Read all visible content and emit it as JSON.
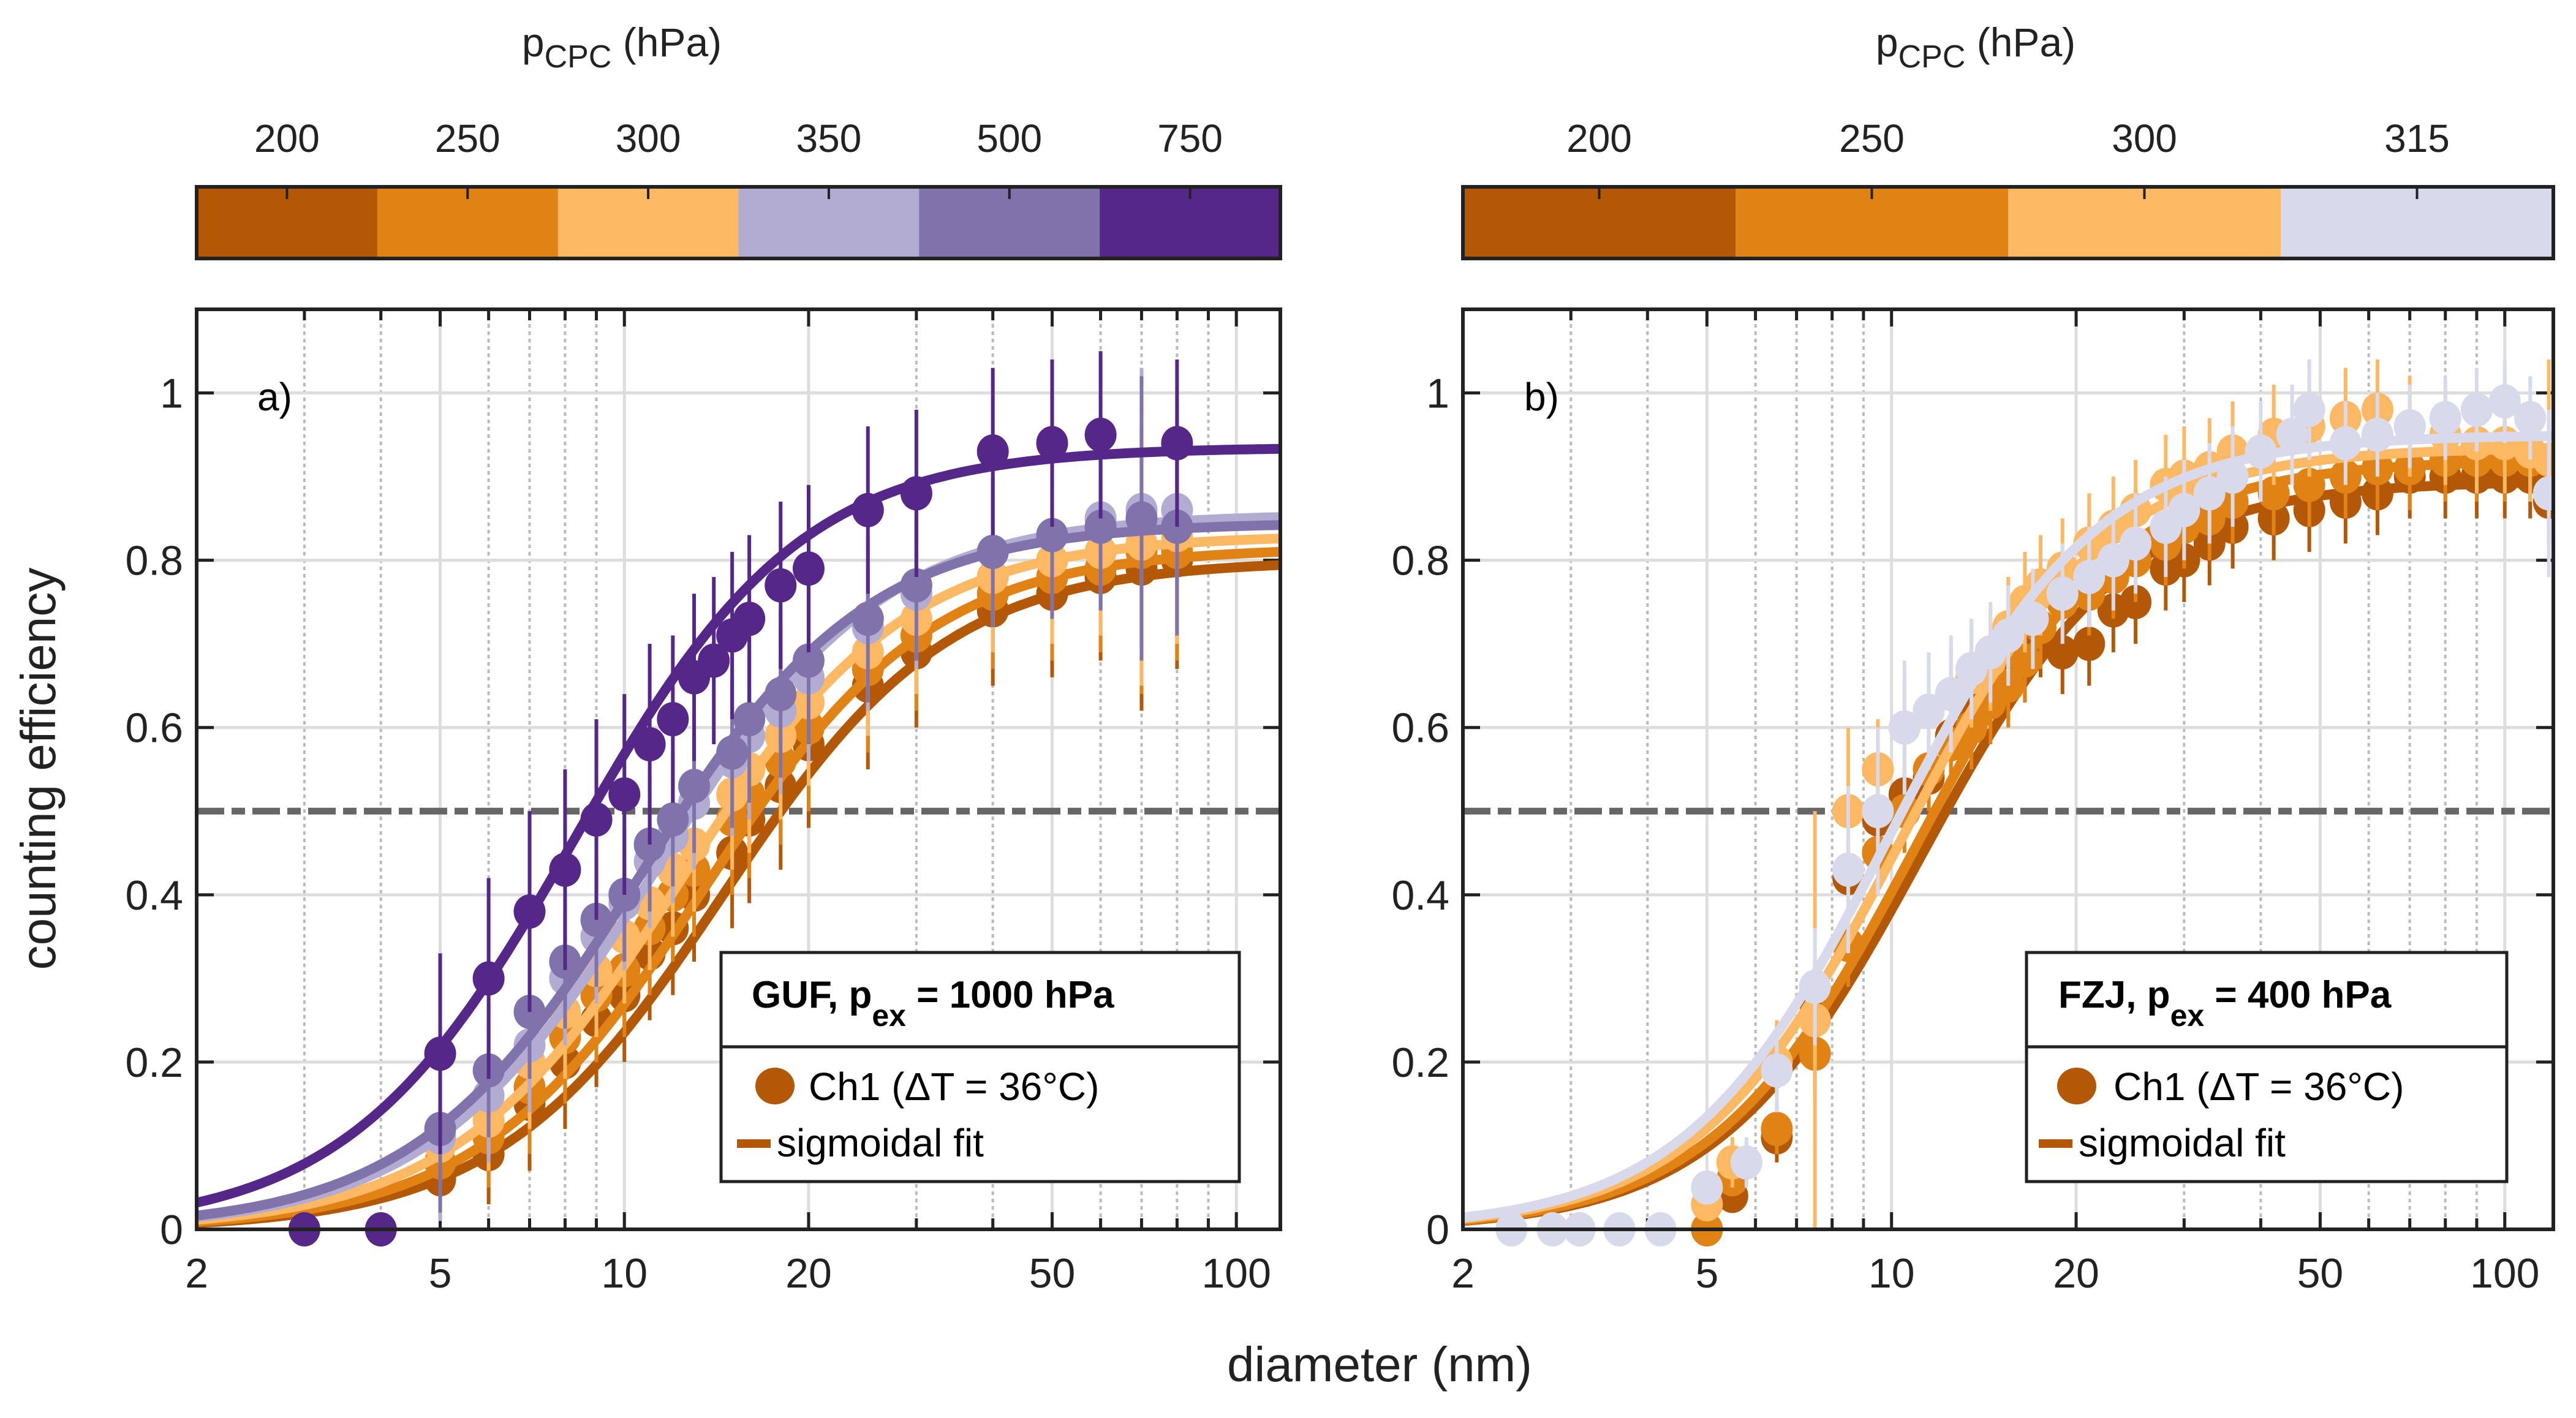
{
  "figure": {
    "xlabel": "diameter (nm)",
    "ylabel": "counting efficiency"
  },
  "chart_data": [
    {
      "type": "scatter",
      "panel_label": "a)",
      "title": "",
      "xlabel": "diameter (nm)",
      "ylabel": "counting efficiency",
      "xscale": "log",
      "xlim": [
        2,
        118
      ],
      "ylim": [
        0,
        1.1
      ],
      "xticks": [
        2,
        5,
        10,
        20,
        50,
        100
      ],
      "xtick_labels": [
        "2",
        "5",
        "10",
        "20",
        "50",
        "100"
      ],
      "yticks": [
        0,
        0.2,
        0.4,
        0.6,
        0.8,
        1
      ],
      "ytick_labels": [
        "0",
        "0.2",
        "0.4",
        "0.6",
        "0.8",
        "1"
      ],
      "grid": true,
      "reference_line": {
        "y": 0.5,
        "style": "dash-dot",
        "color": "#666666"
      },
      "colorbar": {
        "title_main": "p",
        "title_sub": "CPC",
        "title_unit": "(hPa)",
        "labels": [
          "200",
          "250",
          "300",
          "350",
          "500",
          "750"
        ],
        "colors": [
          "#b35806",
          "#e08214",
          "#fdb863",
          "#b2abd2",
          "#8073ac",
          "#542788"
        ]
      },
      "legend": {
        "position": "bottom-right",
        "title_main": "GUF, p",
        "title_sub": "ex",
        "title_rest": " = 1000 hPa",
        "entries": [
          {
            "label": "Ch1 (ΔT = 36°C)",
            "marker": "circle",
            "color": "#b35806"
          },
          {
            "label": "sigmoidal fit",
            "marker": "line",
            "color": "#b35806"
          }
        ]
      },
      "series": [
        {
          "name": "200 hPa",
          "color": "#b35806",
          "fit": {
            "a": 0.8,
            "d50": 14.5,
            "b": 2.35
          },
          "x": [
            5,
            6,
            7,
            8,
            9,
            10,
            11,
            12,
            13,
            15,
            16,
            18,
            20,
            25,
            30,
            40,
            50,
            60,
            70,
            80
          ],
          "y": [
            0.06,
            0.09,
            0.15,
            0.2,
            0.25,
            0.28,
            0.33,
            0.36,
            0.4,
            0.45,
            0.49,
            0.53,
            0.58,
            0.65,
            0.69,
            0.74,
            0.76,
            0.78,
            0.79,
            0.8
          ],
          "err": [
            0.05,
            0.06,
            0.08,
            0.08,
            0.08,
            0.08,
            0.08,
            0.08,
            0.08,
            0.09,
            0.1,
            0.1,
            0.1,
            0.1,
            0.09,
            0.09,
            0.1,
            0.1,
            0.17,
            0.13
          ]
        },
        {
          "name": "250 hPa",
          "color": "#e08214",
          "fit": {
            "a": 0.815,
            "d50": 13.5,
            "b": 2.35
          },
          "x": [
            5,
            6,
            7,
            8,
            9,
            10,
            11,
            12,
            13,
            15,
            16,
            18,
            20,
            25,
            30,
            40,
            50,
            60,
            70,
            80
          ],
          "y": [
            0.08,
            0.11,
            0.17,
            0.23,
            0.28,
            0.31,
            0.36,
            0.4,
            0.43,
            0.49,
            0.52,
            0.56,
            0.6,
            0.67,
            0.71,
            0.76,
            0.78,
            0.79,
            0.81,
            0.81
          ],
          "err": [
            0.05,
            0.06,
            0.08,
            0.08,
            0.08,
            0.08,
            0.08,
            0.08,
            0.08,
            0.09,
            0.1,
            0.1,
            0.1,
            0.1,
            0.09,
            0.09,
            0.1,
            0.1,
            0.17,
            0.13
          ]
        },
        {
          "name": "300 hPa",
          "color": "#fdb863",
          "fit": {
            "a": 0.83,
            "d50": 12.3,
            "b": 2.35
          },
          "x": [
            5,
            6,
            7,
            8,
            9,
            10,
            11,
            12,
            13,
            15,
            16,
            18,
            20,
            25,
            30,
            40,
            50,
            60,
            70,
            80
          ],
          "y": [
            0.1,
            0.13,
            0.2,
            0.26,
            0.31,
            0.35,
            0.39,
            0.43,
            0.46,
            0.52,
            0.55,
            0.59,
            0.63,
            0.69,
            0.73,
            0.78,
            0.8,
            0.81,
            0.82,
            0.83
          ],
          "err": [
            0.05,
            0.06,
            0.08,
            0.08,
            0.08,
            0.08,
            0.08,
            0.08,
            0.08,
            0.09,
            0.1,
            0.1,
            0.1,
            0.1,
            0.09,
            0.09,
            0.1,
            0.1,
            0.17,
            0.13
          ]
        },
        {
          "name": "350 hPa",
          "color": "#b2abd2",
          "fit": {
            "a": 0.855,
            "d50": 11.2,
            "b": 2.35
          },
          "x": [
            5,
            6,
            7,
            8,
            9,
            10,
            11,
            12,
            13,
            15,
            16,
            18,
            20,
            25,
            30,
            40,
            50,
            60,
            70,
            80
          ],
          "y": [
            0.11,
            0.16,
            0.22,
            0.3,
            0.35,
            0.39,
            0.44,
            0.47,
            0.51,
            0.56,
            0.59,
            0.62,
            0.66,
            0.72,
            0.76,
            0.81,
            0.83,
            0.85,
            0.86,
            0.86
          ],
          "err": [
            0.1,
            0.08,
            0.08,
            0.08,
            0.08,
            0.08,
            0.08,
            0.08,
            0.08,
            0.09,
            0.1,
            0.1,
            0.1,
            0.1,
            0.09,
            0.09,
            0.1,
            0.1,
            0.17,
            0.13
          ]
        },
        {
          "name": "500 hPa",
          "color": "#8073ac",
          "fit": {
            "a": 0.845,
            "d50": 10.6,
            "b": 2.35
          },
          "x": [
            5,
            6,
            7,
            8,
            9,
            10,
            11,
            12,
            13,
            15,
            16,
            18,
            20,
            25,
            30,
            40,
            50,
            60,
            70,
            80
          ],
          "y": [
            0.12,
            0.19,
            0.26,
            0.32,
            0.37,
            0.4,
            0.46,
            0.49,
            0.53,
            0.57,
            0.61,
            0.64,
            0.68,
            0.73,
            0.77,
            0.81,
            0.83,
            0.84,
            0.85,
            0.84
          ],
          "err": [
            0.1,
            0.08,
            0.08,
            0.08,
            0.08,
            0.08,
            0.08,
            0.08,
            0.08,
            0.09,
            0.1,
            0.1,
            0.1,
            0.1,
            0.09,
            0.09,
            0.1,
            0.1,
            0.17,
            0.13
          ]
        },
        {
          "name": "750 hPa",
          "color": "#542788",
          "fit": {
            "a": 0.935,
            "d50": 8.3,
            "b": 2.35
          },
          "x": [
            3,
            4,
            5,
            6,
            7,
            8,
            9,
            10,
            11,
            12,
            13,
            14,
            15,
            16,
            18,
            20,
            25,
            30,
            40,
            50,
            60,
            80
          ],
          "y": [
            0,
            0,
            0.21,
            0.3,
            0.38,
            0.43,
            0.49,
            0.52,
            0.58,
            0.61,
            0.66,
            0.68,
            0.71,
            0.73,
            0.77,
            0.79,
            0.86,
            0.88,
            0.93,
            0.94,
            0.95,
            0.94
          ],
          "err": [
            0,
            0,
            0.12,
            0.12,
            0.12,
            0.12,
            0.12,
            0.12,
            0.12,
            0.1,
            0.1,
            0.1,
            0.1,
            0.1,
            0.1,
            0.1,
            0.1,
            0.1,
            0.1,
            0.1,
            0.1,
            0.1
          ]
        }
      ]
    },
    {
      "type": "scatter",
      "panel_label": "b)",
      "title": "",
      "xlabel": "diameter (nm)",
      "ylabel": "counting efficiency",
      "xscale": "log",
      "xlim": [
        2,
        120
      ],
      "ylim": [
        0,
        1.1
      ],
      "xticks": [
        2,
        5,
        10,
        20,
        50,
        100
      ],
      "xtick_labels": [
        "2",
        "5",
        "10",
        "20",
        "50",
        "100"
      ],
      "yticks": [
        0,
        0.2,
        0.4,
        0.6,
        0.8,
        1
      ],
      "ytick_labels": [
        "0",
        "0.2",
        "0.4",
        "0.6",
        "0.8",
        "1"
      ],
      "grid": true,
      "reference_line": {
        "y": 0.5,
        "style": "dash-dot",
        "color": "#666666"
      },
      "colorbar": {
        "title_main": "p",
        "title_sub": "CPC",
        "title_unit": "(hPa)",
        "labels": [
          "200",
          "250",
          "300",
          "315"
        ],
        "colors": [
          "#b35806",
          "#e08214",
          "#fdb863",
          "#d8daeb"
        ]
      },
      "legend": {
        "position": "bottom-right",
        "title_main": "FZJ, p",
        "title_sub": "ex",
        "title_rest": " = 400 hPa",
        "entries": [
          {
            "label": "Ch1 (ΔT = 36°C)",
            "marker": "circle",
            "color": "#b35806"
          },
          {
            "label": "sigmoidal fit",
            "marker": "line",
            "color": "#b35806"
          }
        ]
      },
      "series": [
        {
          "name": "200 hPa",
          "color": "#b35806",
          "fit": {
            "a": 0.895,
            "d50": 11.2,
            "b": 2.6
          },
          "x": [
            5,
            5.5,
            6.5,
            7.5,
            8.5,
            9.5,
            10.5,
            11.5,
            12.5,
            13.5,
            14.5,
            15.5,
            16.5,
            17.5,
            19,
            21,
            23,
            25,
            28,
            30,
            33,
            36,
            42,
            48,
            55,
            62,
            70,
            80,
            90,
            100,
            110,
            118
          ],
          "y": [
            0.0,
            0.04,
            0.11,
            0.27,
            0.42,
            0.49,
            0.52,
            0.54,
            0.59,
            0.62,
            0.64,
            0.66,
            0.68,
            0.71,
            0.69,
            0.7,
            0.74,
            0.75,
            0.79,
            0.8,
            0.82,
            0.84,
            0.85,
            0.86,
            0.87,
            0.88,
            0.9,
            0.9,
            0.9,
            0.9,
            0.9,
            0.87
          ],
          "err": [
            0,
            0.02,
            0.03,
            0.05,
            0.05,
            0.05,
            0.05,
            0.05,
            0.05,
            0.05,
            0.05,
            0.05,
            0.05,
            0.05,
            0.05,
            0.05,
            0.05,
            0.05,
            0.05,
            0.05,
            0.05,
            0.05,
            0.05,
            0.05,
            0.05,
            0.05,
            0.05,
            0.05,
            0.05,
            0.05,
            0.05,
            0.05
          ]
        },
        {
          "name": "250 hPa",
          "color": "#e08214",
          "fit": {
            "a": 0.92,
            "d50": 11.0,
            "b": 2.6
          },
          "x": [
            5,
            5.5,
            6.5,
            7.5,
            8.5,
            9.5,
            10.5,
            11.5,
            12.5,
            13.5,
            14.5,
            15.5,
            16.5,
            17.5,
            19,
            21,
            23,
            25,
            28,
            30,
            33,
            36,
            42,
            48,
            55,
            62,
            70,
            80,
            90,
            100,
            110,
            118
          ],
          "y": [
            0.0,
            0.06,
            0.12,
            0.21,
            0.34,
            0.45,
            0.5,
            0.55,
            0.58,
            0.6,
            0.63,
            0.65,
            0.68,
            0.72,
            0.75,
            0.76,
            0.78,
            0.8,
            0.82,
            0.84,
            0.85,
            0.87,
            0.88,
            0.89,
            0.9,
            0.91,
            0.91,
            0.92,
            0.92,
            0.92,
            0.92,
            0.92
          ],
          "err": [
            0,
            0.02,
            0.03,
            0.05,
            0.05,
            0.05,
            0.05,
            0.05,
            0.05,
            0.05,
            0.05,
            0.05,
            0.05,
            0.05,
            0.05,
            0.05,
            0.05,
            0.05,
            0.05,
            0.05,
            0.05,
            0.05,
            0.05,
            0.05,
            0.05,
            0.05,
            0.05,
            0.05,
            0.05,
            0.05,
            0.05,
            0.05
          ]
        },
        {
          "name": "300 hPa",
          "color": "#fdb863",
          "fit": {
            "a": 0.935,
            "d50": 10.4,
            "b": 2.6
          },
          "x": [
            3.1,
            5,
            5.5,
            6.5,
            7.5,
            8.5,
            9.5,
            10.5,
            11.5,
            12.5,
            13.5,
            14.5,
            15.5,
            16.5,
            17.5,
            19,
            21,
            23,
            25,
            28,
            30,
            33,
            36,
            42,
            48,
            55,
            62,
            70,
            80,
            90,
            100,
            110,
            118
          ],
          "y": [
            0.0,
            0.03,
            0.08,
            0.2,
            0.25,
            0.5,
            0.55,
            0.6,
            0.62,
            0.64,
            0.66,
            0.68,
            0.72,
            0.75,
            0.77,
            0.79,
            0.82,
            0.84,
            0.86,
            0.89,
            0.9,
            0.91,
            0.93,
            0.95,
            0.96,
            0.97,
            0.98,
            0.96,
            0.95,
            0.94,
            0.94,
            0.93,
            0.92
          ],
          "err": [
            0,
            0.02,
            0.03,
            0.05,
            0.25,
            0.1,
            0.06,
            0.06,
            0.06,
            0.06,
            0.06,
            0.06,
            0.06,
            0.06,
            0.06,
            0.06,
            0.06,
            0.06,
            0.06,
            0.06,
            0.06,
            0.06,
            0.06,
            0.06,
            0.06,
            0.06,
            0.06,
            0.06,
            0.06,
            0.06,
            0.06,
            0.06,
            0.12
          ]
        },
        {
          "name": "315 hPa",
          "color": "#d8daeb",
          "fit": {
            "a": 0.95,
            "d50": 10.0,
            "b": 2.6
          },
          "x": [
            2.4,
            2.8,
            3.1,
            3.6,
            4.2,
            5,
            5.8,
            6.5,
            7.5,
            8.5,
            9.5,
            10.5,
            11.5,
            12.5,
            13.5,
            14.5,
            15.5,
            17,
            19,
            21,
            23,
            25,
            28,
            30,
            33,
            36,
            40,
            45,
            48,
            55,
            62,
            70,
            80,
            90,
            100,
            110,
            118
          ],
          "y": [
            0,
            0,
            0,
            0,
            0,
            0.05,
            0.08,
            0.19,
            0.29,
            0.43,
            0.5,
            0.6,
            0.62,
            0.64,
            0.67,
            0.69,
            0.71,
            0.73,
            0.76,
            0.78,
            0.8,
            0.82,
            0.84,
            0.86,
            0.88,
            0.9,
            0.93,
            0.95,
            0.98,
            0.94,
            0.95,
            0.96,
            0.97,
            0.98,
            0.99,
            0.97,
            0.88
          ],
          "err": [
            0,
            0,
            0,
            0,
            0,
            0.02,
            0.03,
            0.05,
            0.07,
            0.1,
            0.1,
            0.08,
            0.07,
            0.07,
            0.06,
            0.06,
            0.06,
            0.06,
            0.06,
            0.06,
            0.06,
            0.06,
            0.06,
            0.06,
            0.06,
            0.06,
            0.06,
            0.06,
            0.06,
            0.05,
            0.05,
            0.05,
            0.05,
            0.05,
            0.05,
            0.05,
            0.1
          ]
        }
      ]
    }
  ]
}
